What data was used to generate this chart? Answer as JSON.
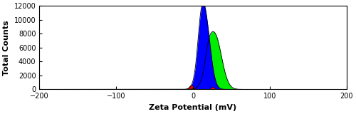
{
  "title": "",
  "xlabel": "Zeta Potential (mV)",
  "ylabel": "Total Counts",
  "xlim": [
    -200,
    200
  ],
  "ylim": [
    0,
    12000
  ],
  "xticks": [
    -200,
    -100,
    0,
    100,
    200
  ],
  "yticks": [
    0,
    2000,
    4000,
    6000,
    8000,
    10000,
    12000
  ],
  "blue_curve": {
    "components": [
      {
        "mean": 15,
        "std": 7,
        "peak": 11000
      },
      {
        "mean": 10,
        "std": 4,
        "peak": 2500
      }
    ],
    "color": "#0000FF",
    "alpha": 1.0
  },
  "green_curve": {
    "components": [
      {
        "mean": 28,
        "std": 9,
        "peak": 8000
      },
      {
        "mean": 20,
        "std": 4,
        "peak": 1500
      }
    ],
    "color": "#00EE00",
    "alpha": 1.0
  },
  "red_curve": {
    "components": [
      {
        "mean": -2,
        "std": 2.5,
        "peak": 600
      },
      {
        "mean": 26,
        "std": 2,
        "peak": 350
      }
    ],
    "color": "#FF0000",
    "alpha": 1.0
  },
  "background_color": "#FFFFFF",
  "xlabel_fontsize": 8,
  "ylabel_fontsize": 8,
  "tick_fontsize": 7,
  "figsize": [
    5.0,
    1.6
  ],
  "dpi": 100
}
